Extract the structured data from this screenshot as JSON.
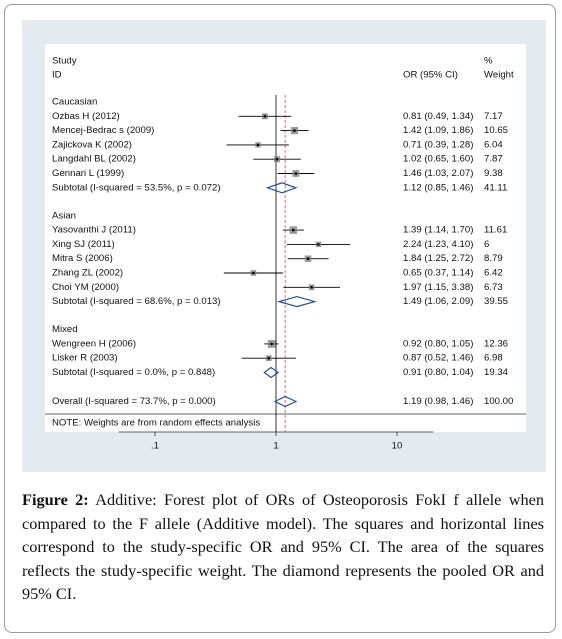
{
  "chart_data": {
    "type": "forest",
    "header": {
      "study": "Study",
      "id": "ID",
      "effect": "OR (95% CI)",
      "pct": "%",
      "weight": "Weight"
    },
    "xscale": "log",
    "xlim": [
      0.05,
      20
    ],
    "xticks": [
      {
        "value": 0.1,
        "label": ".1"
      },
      1,
      10
    ],
    "null_line": 1,
    "marker_color": "#7f7f7f",
    "groups": [
      {
        "name": "Caucasian",
        "studies": [
          {
            "label": "Ozbas H (2012)",
            "or": 0.81,
            "lo": 0.49,
            "hi": 1.34,
            "weight": 7.17,
            "value_label": "0.81 (0.49, 1.34)"
          },
          {
            "label": "Mencej-Bedrac s (2009)",
            "or": 1.42,
            "lo": 1.09,
            "hi": 1.86,
            "weight": 10.65,
            "value_label": "1.42 (1.09, 1.86)"
          },
          {
            "label": "Zajickova K (2002)",
            "or": 0.71,
            "lo": 0.39,
            "hi": 1.28,
            "weight": 6.04,
            "value_label": "0.71 (0.39, 1.28)"
          },
          {
            "label": "Langdahl BL (2002)",
            "or": 1.02,
            "lo": 0.65,
            "hi": 1.6,
            "weight": 7.87,
            "value_label": "1.02 (0.65, 1.60)"
          },
          {
            "label": "Gennari L (1999)",
            "or": 1.46,
            "lo": 1.03,
            "hi": 2.07,
            "weight": 9.38,
            "value_label": "1.46 (1.03, 2.07)"
          }
        ],
        "subtotal": {
          "label": "Subtotal  (I-squared = 53.5%, p = 0.072)",
          "or": 1.12,
          "lo": 0.85,
          "hi": 1.46,
          "weight": 41.11,
          "value_label": "1.12 (0.85, 1.46)"
        }
      },
      {
        "name": "Asian",
        "studies": [
          {
            "label": "Yasovanthi J (2011)",
            "or": 1.39,
            "lo": 1.14,
            "hi": 1.7,
            "weight": 11.61,
            "value_label": "1.39 (1.14, 1.70)"
          },
          {
            "label": "Xing SJ (2011)",
            "or": 2.24,
            "lo": 1.23,
            "hi": 4.1,
            "weight": 6.0,
            "value_label": "2.24 (1.23, 4.10)"
          },
          {
            "label": "Mitra S (2006)",
            "or": 1.84,
            "lo": 1.25,
            "hi": 2.72,
            "weight": 8.79,
            "value_label": "1.84 (1.25, 2.72)"
          },
          {
            "label": "Zhang ZL (2002)",
            "or": 0.65,
            "lo": 0.37,
            "hi": 1.14,
            "weight": 6.42,
            "value_label": "0.65 (0.37, 1.14)"
          },
          {
            "label": "Choi YM (2000)",
            "or": 1.97,
            "lo": 1.15,
            "hi": 3.38,
            "weight": 6.73,
            "value_label": "1.97 (1.15, 3.38)"
          }
        ],
        "subtotal": {
          "label": "Subtotal  (I-squared = 68.6%, p = 0.013)",
          "or": 1.49,
          "lo": 1.06,
          "hi": 2.09,
          "weight": 39.55,
          "value_label": "1.49 (1.06, 2.09)"
        }
      },
      {
        "name": "Mixed",
        "studies": [
          {
            "label": "Wengreen H (2006)",
            "or": 0.92,
            "lo": 0.8,
            "hi": 1.05,
            "weight": 12.36,
            "value_label": "0.92 (0.80, 1.05)"
          },
          {
            "label": "Lisker R (2003)",
            "or": 0.87,
            "lo": 0.52,
            "hi": 1.46,
            "weight": 6.98,
            "value_label": "0.87 (0.52, 1.46)"
          }
        ],
        "subtotal": {
          "label": "Subtotal  (I-squared = 0.0%, p = 0.848)",
          "or": 0.91,
          "lo": 0.8,
          "hi": 1.04,
          "weight": 19.34,
          "value_label": "0.91 (0.80, 1.04)"
        }
      }
    ],
    "overall": {
      "label": "Overall  (I-squared = 73.7%, p = 0.000)",
      "or": 1.19,
      "lo": 0.98,
      "hi": 1.46,
      "weight": 100,
      "value_label": "1.19 (0.98, 1.46)",
      "weight_label": "100.00"
    },
    "note": "NOTE: Weights are from random effects analysis"
  },
  "caption": {
    "label": "Figure 2:",
    "text": "Additive: Forest plot of ORs of Osteoporosis FokI f allele when compared to the F allele (Additive model). The squares and horizontal lines correspond to the study-specific OR and 95% CI. The area of the squares reflects the study-specific weight. The diamond represents the pooled OR and 95% CI."
  }
}
